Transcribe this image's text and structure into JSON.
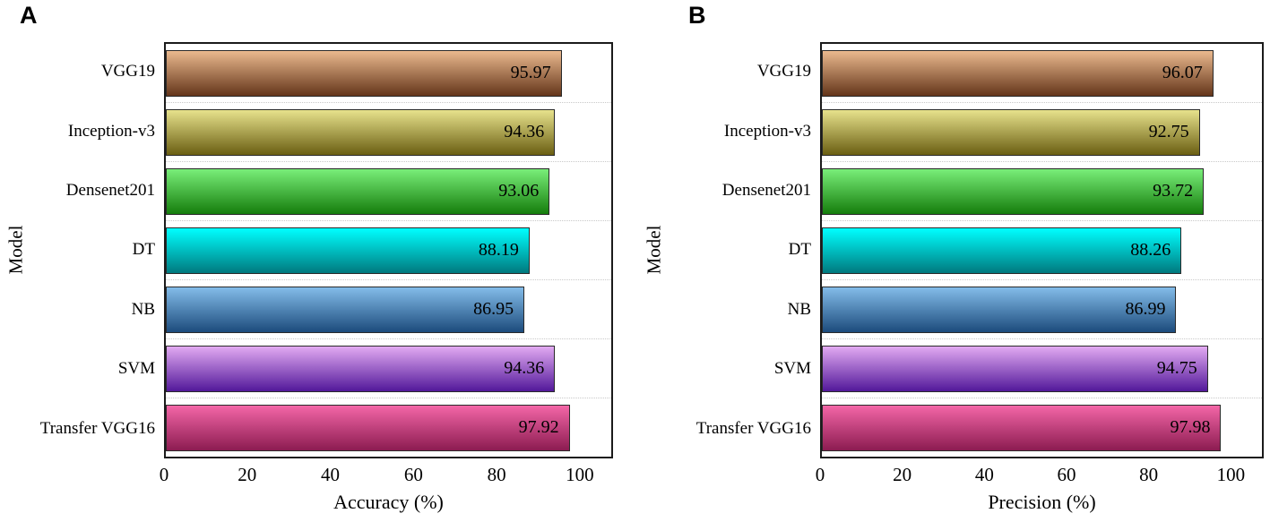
{
  "chart_data": [
    {
      "type": "bar",
      "orientation": "horizontal",
      "panel_label": "A",
      "xlabel": "Accuracy (%)",
      "ylabel": "Model",
      "xlim": [
        0,
        108
      ],
      "xticks": [
        "0",
        "20",
        "40",
        "60",
        "80",
        "100"
      ],
      "xtick_values": [
        0,
        20,
        40,
        60,
        80,
        100
      ],
      "grid": "dotted horizontal lines between categories",
      "legend": "none",
      "categories": [
        "VGG19",
        "Inception-v3",
        "Densenet201",
        "DT",
        "NB",
        "SVM",
        "Transfer VGG16"
      ],
      "values": [
        95.97,
        94.36,
        93.06,
        88.19,
        86.95,
        94.36,
        97.92
      ],
      "value_labels": [
        "95.97",
        "94.36",
        "93.06",
        "88.19",
        "86.95",
        "94.36",
        "97.92"
      ],
      "bar_colors": [
        {
          "top": "#EAB98E",
          "bottom": "#64351A"
        },
        {
          "top": "#E7E28C",
          "bottom": "#6A5E12"
        },
        {
          "top": "#79EE79",
          "bottom": "#157D0C"
        },
        {
          "top": "#00FFFF",
          "bottom": "#00797E"
        },
        {
          "top": "#83BCE9",
          "bottom": "#1C4B7C"
        },
        {
          "top": "#E2AAF2",
          "bottom": "#52189A"
        },
        {
          "top": "#F366A7",
          "bottom": "#8C1C51"
        }
      ],
      "bar_border_color": "#2a2a2a",
      "frame_color": "#1b1b1b"
    },
    {
      "type": "bar",
      "orientation": "horizontal",
      "panel_label": "B",
      "xlabel": "Precision (%)",
      "ylabel": "Model",
      "xlim": [
        0,
        108
      ],
      "xticks": [
        "0",
        "20",
        "40",
        "60",
        "80",
        "100"
      ],
      "xtick_values": [
        0,
        20,
        40,
        60,
        80,
        100
      ],
      "grid": "dotted horizontal lines between categories",
      "legend": "none",
      "categories": [
        "VGG19",
        "Inception-v3",
        "Densenet201",
        "DT",
        "NB",
        "SVM",
        "Transfer VGG16"
      ],
      "values": [
        96.07,
        92.75,
        93.72,
        88.26,
        86.99,
        94.75,
        97.98
      ],
      "value_labels": [
        "96.07",
        "92.75",
        "93.72",
        "88.26",
        "86.99",
        "94.75",
        "97.98"
      ],
      "bar_colors": [
        {
          "top": "#EAB98E",
          "bottom": "#64351A"
        },
        {
          "top": "#E7E28C",
          "bottom": "#6A5E12"
        },
        {
          "top": "#79EE79",
          "bottom": "#157D0C"
        },
        {
          "top": "#00FFFF",
          "bottom": "#00797E"
        },
        {
          "top": "#83BCE9",
          "bottom": "#1C4B7C"
        },
        {
          "top": "#E2AAF2",
          "bottom": "#52189A"
        },
        {
          "top": "#F366A7",
          "bottom": "#8C1C51"
        }
      ],
      "bar_border_color": "#2a2a2a",
      "frame_color": "#1b1b1b"
    }
  ]
}
